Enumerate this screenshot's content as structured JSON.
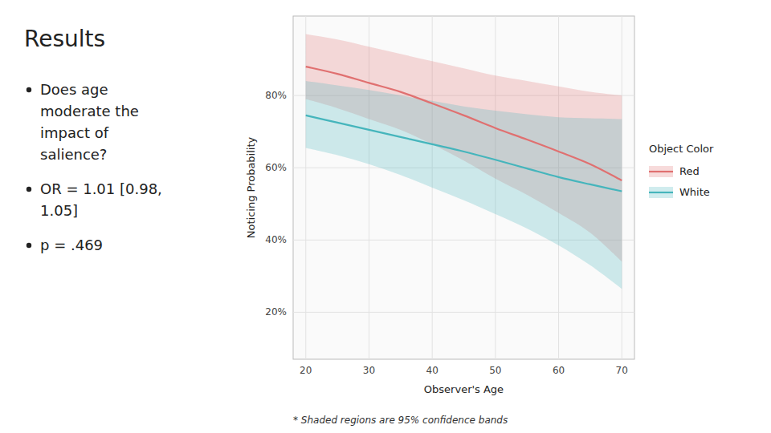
{
  "chart_data": {
    "type": "line",
    "title": "Results",
    "annotations": [
      [
        "Does age",
        "moderate the",
        "impact of",
        "salience?"
      ],
      [
        "OR = 1.01 [0.98,",
        "1.05]"
      ],
      [
        "p = .469"
      ]
    ],
    "footnote": "* Shaded regions are 95% confidence bands",
    "x_label": "Observer's Age",
    "y_label": "Noticing Probability",
    "legend_title": "Object Color",
    "legend": "right",
    "grid": true,
    "x": [
      20,
      25,
      30,
      35,
      40,
      45,
      50,
      55,
      60,
      65,
      70
    ],
    "xlim": [
      18,
      72
    ],
    "xticks": [
      20,
      30,
      40,
      50,
      60,
      70
    ],
    "ylim": [
      0.07,
      1.02
    ],
    "yticks": [
      {
        "value": 0.2,
        "label": "20%"
      },
      {
        "value": 0.4,
        "label": "40%"
      },
      {
        "value": 0.6,
        "label": "60%"
      },
      {
        "value": 0.8,
        "label": "80%"
      }
    ],
    "series": [
      {
        "name": "Red",
        "color": "#E07070",
        "values": [
          0.88,
          0.86,
          0.835,
          0.81,
          0.778,
          0.745,
          0.71,
          0.678,
          0.645,
          0.61,
          0.565
        ],
        "upper": [
          0.97,
          0.955,
          0.935,
          0.915,
          0.895,
          0.875,
          0.855,
          0.84,
          0.825,
          0.81,
          0.8
        ],
        "lower": [
          0.79,
          0.765,
          0.735,
          0.705,
          0.665,
          0.62,
          0.57,
          0.525,
          0.475,
          0.42,
          0.34
        ]
      },
      {
        "name": "White",
        "color": "#45B5BC",
        "values": [
          0.745,
          0.725,
          0.705,
          0.685,
          0.665,
          0.645,
          0.622,
          0.598,
          0.574,
          0.554,
          0.535
        ],
        "upper": [
          0.84,
          0.828,
          0.815,
          0.8,
          0.785,
          0.77,
          0.758,
          0.748,
          0.74,
          0.737,
          0.735
        ],
        "lower": [
          0.655,
          0.635,
          0.61,
          0.58,
          0.545,
          0.51,
          0.472,
          0.432,
          0.385,
          0.33,
          0.265
        ]
      }
    ]
  }
}
